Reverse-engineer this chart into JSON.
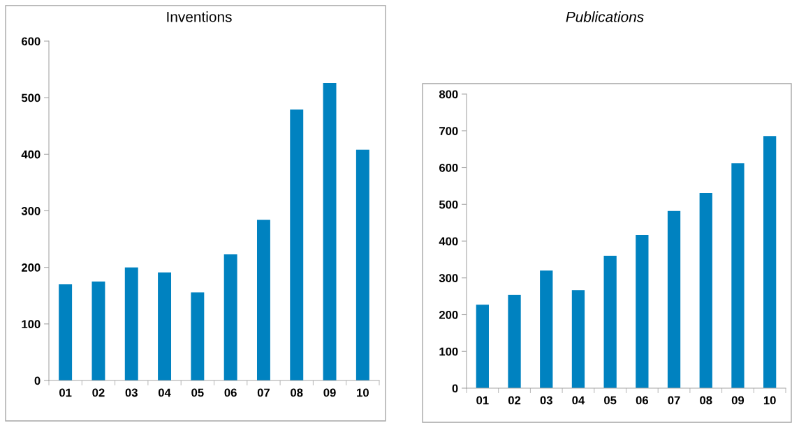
{
  "chart_data": [
    {
      "type": "bar",
      "title": "Inventions",
      "categories": [
        "01",
        "02",
        "03",
        "04",
        "05",
        "06",
        "07",
        "08",
        "09",
        "10"
      ],
      "color": "#0082c0",
      "values": [
        170,
        175,
        200,
        191,
        156,
        223,
        284,
        479,
        526,
        408
      ],
      "ylim": [
        0,
        600
      ],
      "yticks": [
        0,
        100,
        200,
        300,
        400,
        500,
        600
      ],
      "grid": false,
      "legend": false
    },
    {
      "type": "bar",
      "title": "Publications",
      "categories": [
        "01",
        "02",
        "03",
        "04",
        "05",
        "06",
        "07",
        "08",
        "09",
        "10"
      ],
      "color": "#0082c0",
      "values": [
        227,
        254,
        320,
        267,
        360,
        417,
        482,
        531,
        612,
        686
      ],
      "ylim": [
        0,
        800
      ],
      "yticks": [
        0,
        100,
        200,
        300,
        400,
        500,
        600,
        700,
        800
      ],
      "grid": false,
      "legend": false
    }
  ]
}
